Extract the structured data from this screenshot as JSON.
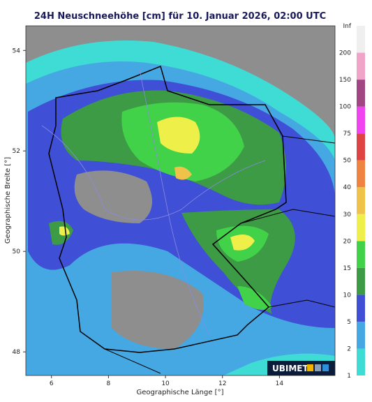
{
  "title": "24H Neuschneehöhe [cm] für 10. Januar 2026, 02:00 UTC",
  "map": {
    "x_label": "Geographische Länge [°]",
    "y_label": "Geographische Breite [°]",
    "xlim": [
      5.1,
      15.95
    ],
    "ylim": [
      47.53,
      54.49
    ],
    "xticks": [
      6,
      8,
      10,
      12,
      14
    ],
    "yticks": [
      48,
      50,
      52,
      54
    ]
  },
  "colorbar": {
    "labels": [
      "1",
      "2",
      "5",
      "10",
      "15",
      "20",
      "30",
      "40",
      "50",
      "75",
      "100",
      "150",
      "200",
      "Inf"
    ],
    "colors": [
      "#3fdcd6",
      "#45a8e2",
      "#3f4fd6",
      "#3d9a45",
      "#41d24a",
      "#efef4a",
      "#efc24a",
      "#ef8442",
      "#df4444",
      "#ef44ef",
      "#a24683",
      "#efa4c8",
      "#efefef"
    ]
  },
  "logo": "UBIMET"
}
